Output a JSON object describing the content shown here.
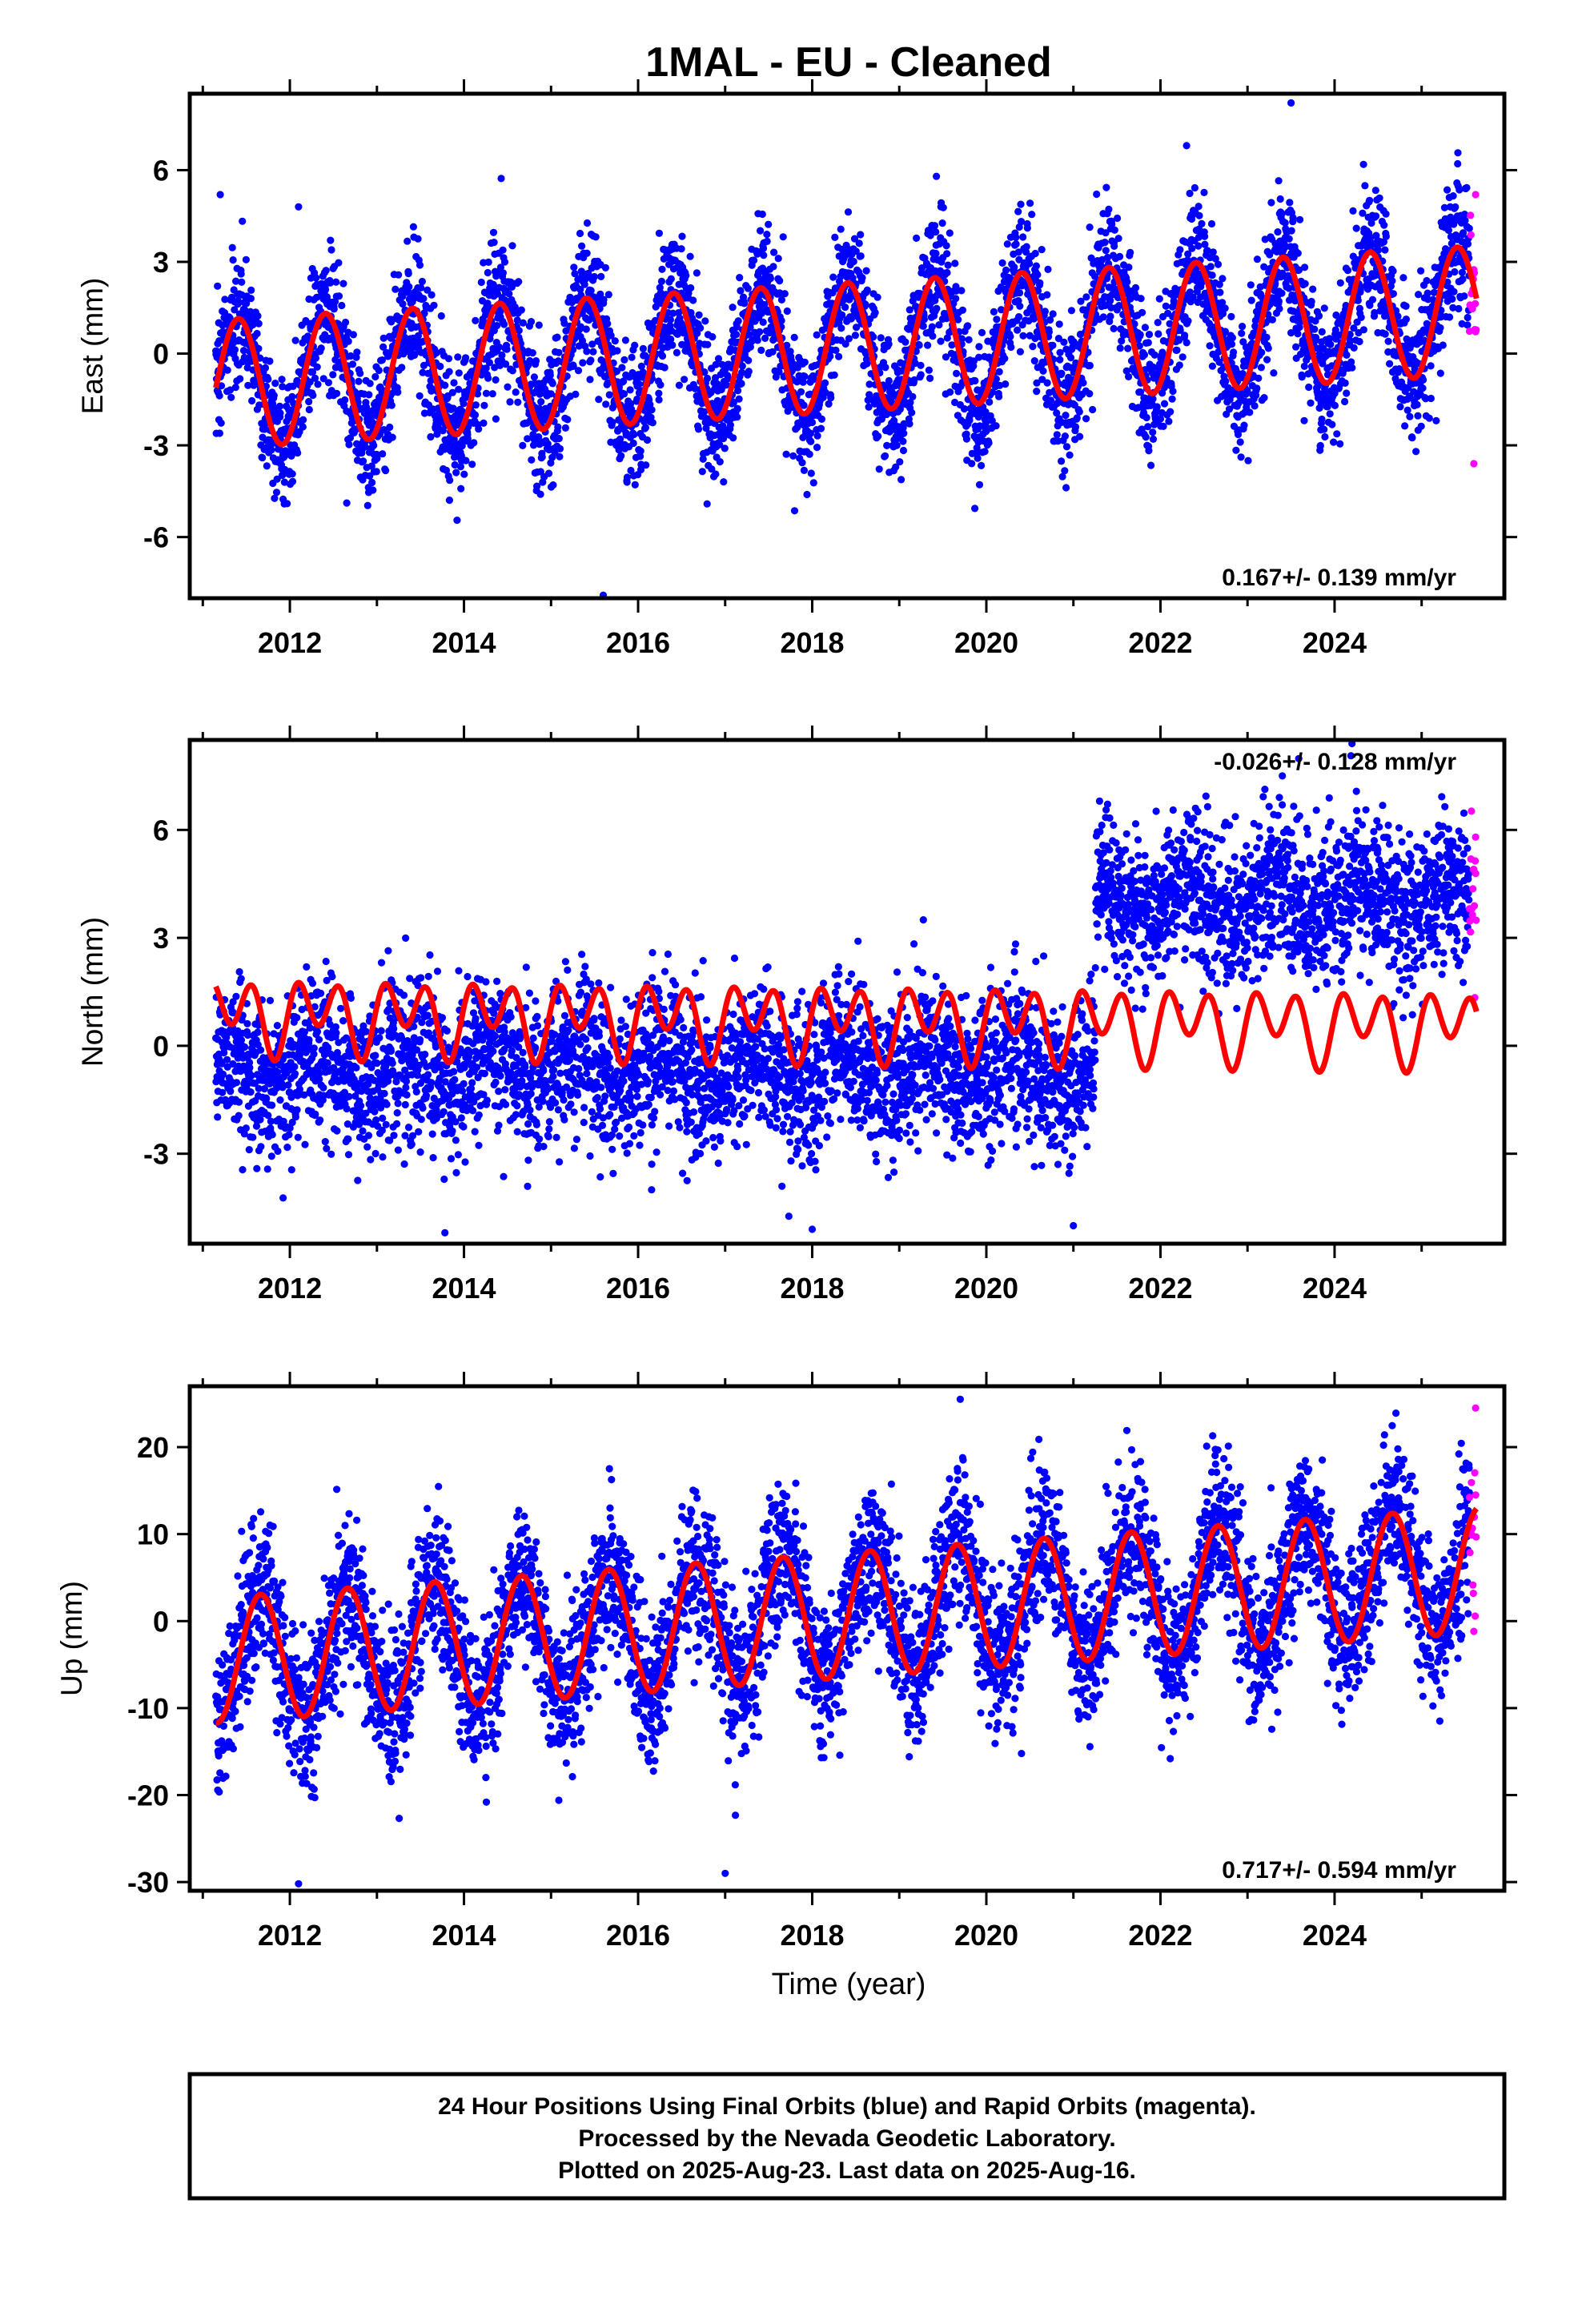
{
  "title": "1MAL  - EU - Cleaned",
  "xlabel": "Time (year)",
  "footer": [
    "24 Hour Positions Using Final Orbits (blue) and Rapid Orbits (magenta).",
    "Processed by the Nevada Geodetic Laboratory.",
    "Plotted on 2025-Aug-23. Last data on 2025-Aug-16."
  ],
  "colors": {
    "final": "#0000ff",
    "rapid": "#ff00ff",
    "model": "#ff0000",
    "frame": "#000000"
  },
  "chart_data": [
    {
      "type": "scatter",
      "name": "east",
      "ylabel": "East (mm)",
      "xlim": [
        2010.85,
        2025.95
      ],
      "ylim": [
        -8,
        8.5
      ],
      "xticks": [
        2012,
        2014,
        2016,
        2018,
        2020,
        2022,
        2024
      ],
      "yticks": [
        -6,
        -3,
        0,
        3,
        6
      ],
      "rate_label": "0.167+/- 0.139 mm/yr",
      "rate_label_position": "bottom-right",
      "data_start": 2011.15,
      "final_end": 2025.55,
      "data_end": 2025.63,
      "model": {
        "offset": -1.0,
        "trend_mm_per_yr": 0.167,
        "annual_amp": 2.1,
        "annual_phase_rad": -1.0,
        "semiannual_amp": 0.0,
        "semiannual_phase_rad": 0.0,
        "step": null
      },
      "noise_sigma": 1.1,
      "extreme_points": [
        [
          2011.2,
          5.2
        ],
        [
          2012.1,
          4.8
        ],
        [
          2015.6,
          -7.9
        ],
        [
          2023.5,
          8.2
        ],
        [
          2022.3,
          6.8
        ],
        [
          2025.6,
          -3.6
        ],
        [
          2025.62,
          5.2
        ]
      ]
    },
    {
      "type": "scatter",
      "name": "north",
      "ylabel": "North (mm)",
      "xlim": [
        2010.85,
        2025.95
      ],
      "ylim": [
        -5.5,
        8.5
      ],
      "xticks": [
        2012,
        2014,
        2016,
        2018,
        2020,
        2022,
        2024
      ],
      "yticks": [
        -3,
        0,
        3,
        6
      ],
      "rate_label": "-0.026+/- 0.128 mm/yr",
      "rate_label_position": "top-right",
      "data_start": 2011.15,
      "final_end": 2025.55,
      "data_end": 2025.63,
      "model": {
        "offset": 0.9,
        "trend_mm_per_yr": -0.026,
        "annual_amp": 0.5,
        "annual_phase_rad": -0.4,
        "semiannual_amp": 0.8,
        "semiannual_phase_rad": 0.6,
        "step": null
      },
      "data_step": {
        "year": 2021.25,
        "before": -0.6,
        "after": 4.0
      },
      "noise_sigma": 1.05,
      "extreme_points": [
        [
          2018.0,
          -5.1
        ],
        [
          2021.0,
          -5.0
        ],
        [
          2024.2,
          8.4
        ],
        [
          2023.4,
          7.5
        ],
        [
          2021.3,
          6.8
        ],
        [
          2025.62,
          5.8
        ]
      ]
    },
    {
      "type": "scatter",
      "name": "up",
      "ylabel": "Up (mm)",
      "xlim": [
        2010.85,
        2025.95
      ],
      "ylim": [
        -31,
        27
      ],
      "xticks": [
        2012,
        2014,
        2016,
        2018,
        2020,
        2022,
        2024
      ],
      "yticks": [
        -30,
        -20,
        -10,
        0,
        10,
        20
      ],
      "rate_label": "0.717+/- 0.594 mm/yr",
      "rate_label_position": "bottom-right",
      "data_start": 2011.15,
      "final_end": 2025.55,
      "data_end": 2025.63,
      "model": {
        "offset": -4.5,
        "trend_mm_per_yr": 0.717,
        "annual_amp": 7.2,
        "annual_phase_rad": -2.6,
        "semiannual_amp": 0.0,
        "semiannual_phase_rad": 0.0,
        "step": null
      },
      "noise_sigma": 4.4,
      "extreme_points": [
        [
          2012.1,
          -30.2
        ],
        [
          2017.0,
          -29.0
        ],
        [
          2019.7,
          25.5
        ],
        [
          2022.6,
          21.3
        ],
        [
          2025.62,
          24.5
        ]
      ]
    }
  ]
}
